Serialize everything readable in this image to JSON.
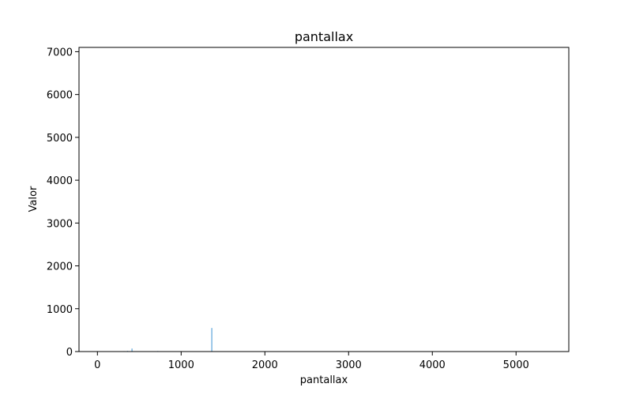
{
  "chart_data": {
    "type": "bar",
    "title": "pantallax",
    "xlabel": "pantallax",
    "ylabel": "Valor",
    "xlim": [
      -220,
      5630
    ],
    "ylim": [
      0,
      7100
    ],
    "x_ticks": [
      0,
      1000,
      2000,
      3000,
      4000,
      5000
    ],
    "y_ticks": [
      0,
      1000,
      2000,
      3000,
      4000,
      5000,
      6000,
      7000
    ],
    "grid": false,
    "bar_color": "#5da5da",
    "x": [
      320,
      360,
      413,
      720,
      1000,
      1366
    ],
    "values": [
      10,
      15,
      70,
      12,
      8,
      550
    ]
  }
}
